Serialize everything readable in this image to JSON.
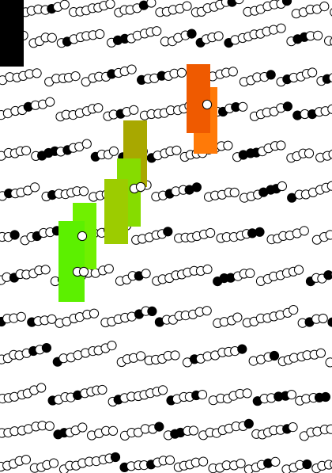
{
  "artwork": {
    "background": "#ffffff",
    "dot_fill_light": "#ffffff",
    "dot_fill_dark": "#000000",
    "dot_outline": "#000000",
    "row_count": 12
  },
  "corner_block": {
    "color": "#000000"
  },
  "highlights": [
    {
      "name": "orange-block-upper",
      "color": "#ef5a00"
    },
    {
      "name": "orange-block-lower",
      "color": "#ff7a08"
    },
    {
      "name": "olive-block",
      "color": "#a8a800"
    },
    {
      "name": "yellow-green-block-upper",
      "color": "#9ccc00"
    },
    {
      "name": "yellow-green-block-lower",
      "color": "#86dc00"
    },
    {
      "name": "green-block-upper",
      "color": "#70f000"
    },
    {
      "name": "green-block-lower",
      "color": "#5cf000"
    }
  ]
}
